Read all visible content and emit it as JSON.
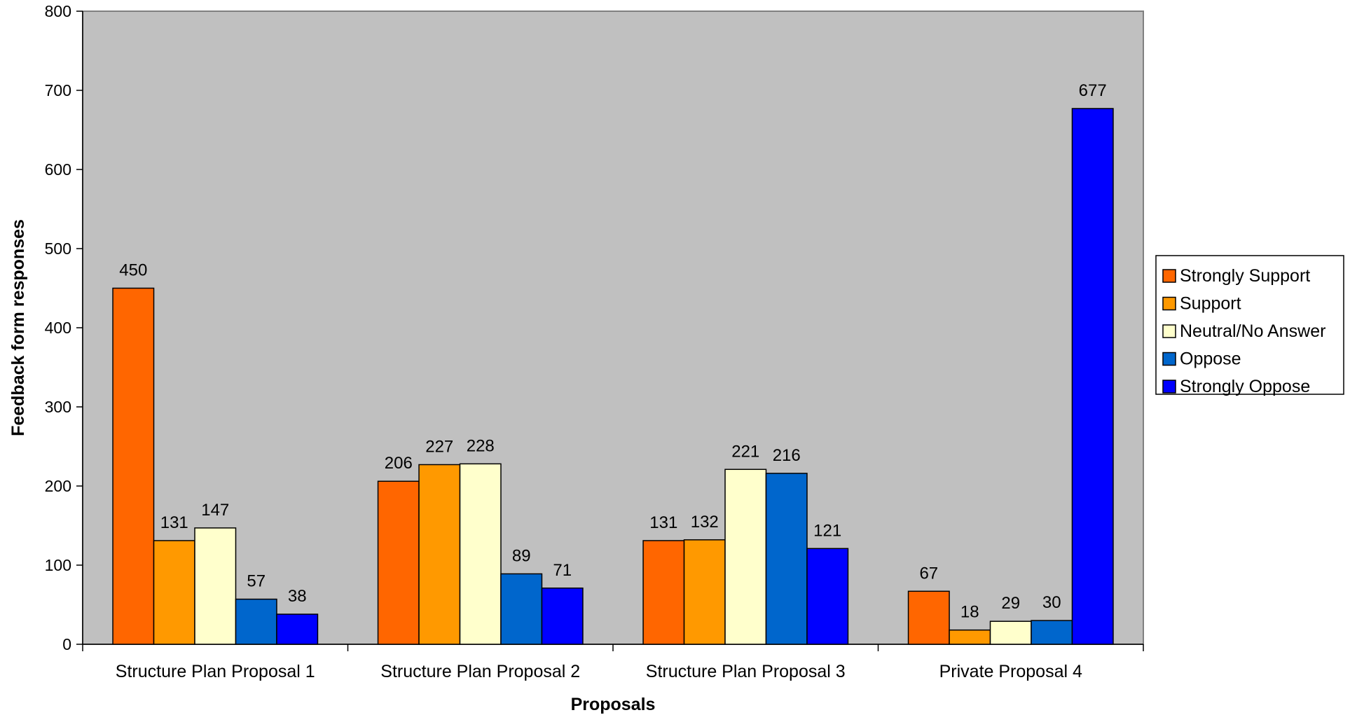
{
  "chart_data": {
    "type": "bar",
    "title": "",
    "xlabel": "Proposals",
    "ylabel": "Feedback form responses",
    "ylim": [
      0,
      800
    ],
    "yticks": [
      0,
      100,
      200,
      300,
      400,
      500,
      600,
      700,
      800
    ],
    "grid": false,
    "plot_background": "#C0C0C0",
    "legend_position": "right",
    "categories": [
      "Structure Plan Proposal 1",
      "Structure Plan Proposal 2",
      "Structure Plan Proposal 3",
      "Private Proposal 4"
    ],
    "series": [
      {
        "name": "Strongly Support",
        "color": "#FF6600",
        "values": [
          450,
          206,
          131,
          67
        ]
      },
      {
        "name": "Support",
        "color": "#FF9900",
        "values": [
          131,
          227,
          132,
          18
        ]
      },
      {
        "name": "Neutral/No Answer",
        "color": "#FFFFCC",
        "values": [
          147,
          228,
          221,
          29
        ]
      },
      {
        "name": "Oppose",
        "color": "#0066CC",
        "values": [
          57,
          89,
          216,
          30
        ]
      },
      {
        "name": "Strongly Oppose",
        "color": "#0000FF",
        "values": [
          38,
          71,
          121,
          677
        ]
      }
    ]
  }
}
